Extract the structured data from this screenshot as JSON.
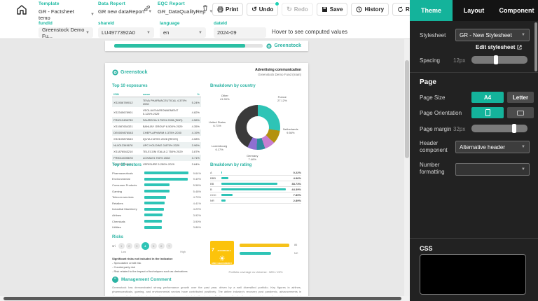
{
  "accent": "#14b39b",
  "toolbar": {
    "template": {
      "label": "Template",
      "value": "GR - Factsheet temp"
    },
    "data_report": {
      "label": "Data Report",
      "value": "GR new dataReport"
    },
    "eqc_report": {
      "label": "EQC Report",
      "value": "GR_DataQualityRep"
    },
    "buttons": {
      "print": "Print",
      "undo": "Undo",
      "redo": "Redo",
      "save": "Save",
      "history": "History",
      "refresh": "Refresh"
    }
  },
  "params": {
    "fund": {
      "label": "fundId",
      "value": "Greenstock Demo Fu..."
    },
    "share": {
      "label": "shareId",
      "value": "LU4977392A0"
    },
    "language": {
      "label": "language",
      "value": "en"
    },
    "date": {
      "label": "dateId",
      "value": "2024-09"
    },
    "hint": "Hover to see computed values"
  },
  "preview": {
    "brand": "Greenstock",
    "progress_percent": 88,
    "page": {
      "header": {
        "title": "Advertising communication",
        "subtitle": "Greenstock Demo Fund (main)"
      },
      "exposures": {
        "title": "Top 10 exposures",
        "columns": [
          "ISIN",
          "name",
          "%"
        ],
        "rows": [
          [
            "XS2456789012",
            "TEVA PHARMACEUTICAL 4.375% 2030",
            "5.24%"
          ],
          [
            "XS2345678901",
            "VEOLIA ENVIRONNEMENT 5.125% 2029",
            "4.82%"
          ],
          [
            "FR0013456789",
            "FAURECIA 3.750% 2028 (SNR)",
            "4.56%"
          ],
          [
            "XS1987654321",
            "BANIJAY GROUP 6.500% 2029",
            "4.35%"
          ],
          [
            "DE0009876543",
            "CHEPLAPHARM 4.375% 2030",
            "4.19%"
          ],
          [
            "XS2109876543",
            "IQVIA 2.875% 2028 (REGS)",
            "4.08%"
          ],
          [
            "NL0012345678",
            "UPC HOLDING 3.875% 2029",
            "3.96%"
          ],
          [
            "XS1876543210",
            "TELECOM ITALIA 2.750% 2029",
            "3.87%"
          ],
          [
            "FR0014005678",
            "LOXAM 5.750% 2028",
            "3.71%"
          ],
          [
            "XS2012345678",
            "VERISURE 5.250% 2029",
            "3.64%"
          ]
        ]
      },
      "country_chart": {
        "type": "pie",
        "title": "Breakdown by country",
        "series": [
          {
            "name": "France",
            "value": 27.12,
            "label": "27.12%",
            "color": "#2ec4b6"
          },
          {
            "name": "Netherlands",
            "value": 9.56,
            "label": "9.56%",
            "color": "#b3920e"
          },
          {
            "name": "Germany",
            "value": 7.46,
            "label": "7.46%",
            "color": "#c77fd1"
          },
          {
            "name": "Luxembourg",
            "value": 6.17,
            "label": "6.17%",
            "color": "#2d8c9e"
          },
          {
            "name": "United States",
            "value": 6.71,
            "label": "6.71%",
            "color": "#8e6fd0"
          },
          {
            "name": "Other",
            "value": 41.9,
            "label": "41.90%",
            "color": "#3b3b3b"
          }
        ]
      },
      "sectors_chart": {
        "type": "bar",
        "title": "Top 10 sectors",
        "categories": [
          "Pharmaceuticals",
          "Environmental",
          "Consumer Products",
          "Gaming",
          "Telecom services",
          "Retailers",
          "Industrial Machinery",
          "Airlines",
          "Chemicals",
          "Utilities"
        ],
        "values": [
          9.64,
          9.49,
          5.58,
          5.48,
          4.79,
          4.41,
          4.29,
          3.92,
          3.9,
          3.86
        ],
        "labels": [
          "9.64%",
          "9.49%",
          "5.58%",
          "5.48%",
          "4.79%",
          "4.41%",
          "4.29%",
          "3.92%",
          "3.90%",
          "3.86%"
        ]
      },
      "rating_chart": {
        "type": "bar",
        "title": "Breakdown by rating",
        "categories": [
          "A",
          "BBB",
          "BB",
          "B",
          "CCC",
          "NR"
        ],
        "values": [
          0.22,
          4.96,
          38.73,
          44.39,
          7.89,
          2.89
        ],
        "labels": [
          "0.22%",
          "4.96%",
          "38.73%",
          "44.39%",
          "7.89%",
          "2.89%"
        ]
      },
      "risks": {
        "title": "Risks",
        "scale_label": "sri",
        "levels": [
          1,
          2,
          3,
          4,
          5,
          6,
          7
        ],
        "selected": 4,
        "low": "Low",
        "high": "High",
        "notes_title": "Significant risks not included in the indicator:",
        "notes": [
          "- Speculative credit risk",
          "- Counterparty risk",
          "- Risk related to the impact of techniques such as derivatives"
        ]
      },
      "esg": {
        "sdg_number": "7",
        "sdg_text": "AFFORDABLE AND CLEAN ENERGY",
        "sdg_color": "#FCC30B",
        "sun_icon": "☀",
        "bars": [
          {
            "value": 94,
            "label": "86",
            "color": "#f6c21a"
          },
          {
            "value": 60,
            "label": "NC",
            "color": "#2ec4b6"
          }
        ],
        "caption": "Portfolio coverage vs Universe : 58% / 23%"
      },
      "comment": {
        "title": "Management Comment",
        "text": "Greenstock has demonstrated strong performance growth over the past year, driven by a well diversified portfolio. Key figures in airlines, pharmaceuticals, gaming, and environmental sectors have contributed positively. The airline industry's recovery post pandemic, advancements in pharmaceuticals, and steady demand in gaming have provided significant gains. Furthermore, the fund's environmental commitments have resonated with investors, driving increased inflows and supporting a constructive outlook for the coming quarters."
      }
    }
  },
  "sidebar": {
    "tabs": [
      {
        "label": "Theme",
        "active": true
      },
      {
        "label": "Layout",
        "active": false
      },
      {
        "label": "Component",
        "active": false
      }
    ],
    "stylesheet": {
      "label": "Stylesheet",
      "value": "GR - New Stylesheet",
      "edit_link": "Edit stylesheet"
    },
    "spacing": {
      "label": "Spacing",
      "value": "12px",
      "percent": 45
    },
    "page": {
      "heading": "Page",
      "size": {
        "label": "Page Size",
        "options": [
          "A4",
          "Letter"
        ],
        "selected": "A4"
      },
      "orientation": {
        "label": "Page Orientation",
        "selected": "portrait"
      },
      "margin": {
        "label": "Page margin",
        "value": "32px",
        "percent": 78
      },
      "header_component": {
        "label": "Header component",
        "value": "Alternative header"
      },
      "number_formatting": {
        "label": "Number formatting",
        "value": ""
      }
    },
    "css_label": "CSS"
  }
}
